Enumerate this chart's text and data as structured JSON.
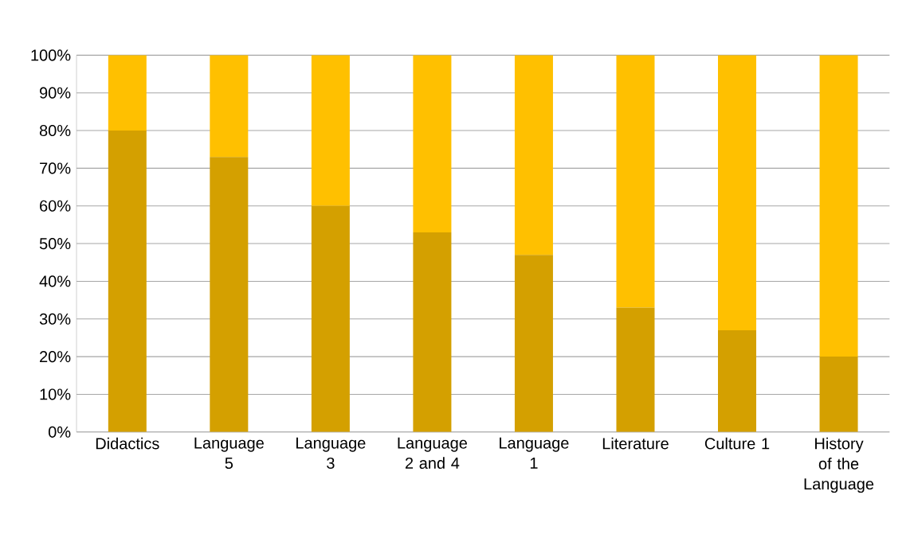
{
  "chart_data": {
    "type": "bar",
    "stacked": true,
    "categories": [
      "Didactics",
      "Language 5",
      "Language 3",
      "Language 2 and 4",
      "Language 1",
      "Literature",
      "Culture 1",
      "History of the Language"
    ],
    "series": [
      {
        "color": "#d4a000",
        "values": [
          80,
          73,
          60,
          53,
          47,
          33,
          27,
          20
        ]
      },
      {
        "color": "#ffc000",
        "values": [
          20,
          27,
          40,
          47,
          53,
          67,
          73,
          80
        ]
      }
    ],
    "ylim": [
      0,
      100
    ],
    "yticks": [
      {
        "value": 0,
        "label": "0%"
      },
      {
        "value": 10,
        "label": "10%"
      },
      {
        "value": 20,
        "label": "20%"
      },
      {
        "value": 30,
        "label": "30%"
      },
      {
        "value": 40,
        "label": "40%"
      },
      {
        "value": 50,
        "label": "50%"
      },
      {
        "value": 60,
        "label": "60%"
      },
      {
        "value": 70,
        "label": "70%"
      },
      {
        "value": 80,
        "label": "80%"
      },
      {
        "value": 90,
        "label": "90%"
      },
      {
        "value": 100,
        "label": "100%"
      }
    ],
    "grid": "y"
  }
}
